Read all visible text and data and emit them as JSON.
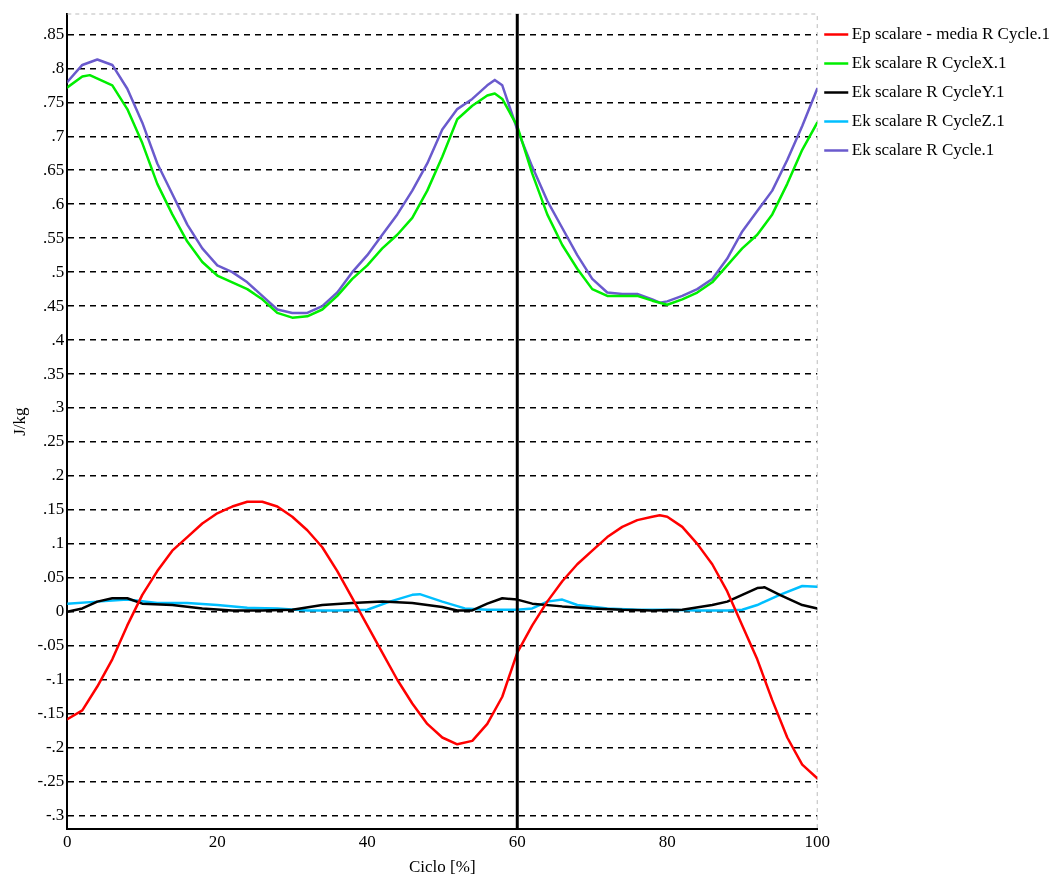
{
  "chart_data": {
    "type": "line",
    "xlabel": "Ciclo [%]",
    "ylabel": "J/kg",
    "xlim": [
      0,
      100
    ],
    "xticks": [
      0,
      20,
      40,
      60,
      80,
      100
    ],
    "ylim": [
      -0.32,
      0.88
    ],
    "yticks": [
      {
        "value": -0.3,
        "label": "-.3"
      },
      {
        "value": -0.25,
        "label": "-.25"
      },
      {
        "value": -0.2,
        "label": "-.2"
      },
      {
        "value": -0.15,
        "label": "-.15"
      },
      {
        "value": -0.1,
        "label": "-.1"
      },
      {
        "value": -0.05,
        "label": "-.05"
      },
      0,
      {
        "value": 0.05,
        "label": ".05"
      },
      {
        "value": 0.1,
        "label": ".1"
      },
      {
        "value": 0.15,
        "label": ".15"
      },
      {
        "value": 0.2,
        "label": ".2"
      },
      {
        "value": 0.25,
        "label": ".25"
      },
      {
        "value": 0.3,
        "label": ".3"
      },
      {
        "value": 0.35,
        "label": ".35"
      },
      {
        "value": 0.4,
        "label": ".4"
      },
      {
        "value": 0.45,
        "label": ".45"
      },
      {
        "value": 0.5,
        "label": ".5"
      },
      {
        "value": 0.55,
        "label": ".55"
      },
      {
        "value": 0.6,
        "label": ".6"
      },
      {
        "value": 0.65,
        "label": ".65"
      },
      {
        "value": 0.7,
        "label": ".7"
      },
      {
        "value": 0.75,
        "label": ".75"
      },
      {
        "value": 0.8,
        "label": ".8"
      },
      {
        "value": 0.85,
        "label": ".85"
      }
    ],
    "grid": "y",
    "legend": "top right",
    "marker": "none",
    "line_style": "solid",
    "ref_lines": [
      {
        "axis": "x",
        "value": 60,
        "color": "#000000",
        "line_style": "solid"
      }
    ],
    "series": [
      {
        "name": "Ep scalare - media R Cycle.1",
        "color": "#ff0000",
        "x": [
          0,
          2,
          4,
          6,
          8,
          10,
          12,
          14,
          16,
          18,
          20,
          22,
          24,
          26,
          28,
          30,
          32,
          34,
          36,
          38,
          40,
          42,
          44,
          46,
          48,
          50,
          52,
          54,
          56,
          58,
          60,
          62,
          64,
          66,
          68,
          70,
          72,
          74,
          76,
          78,
          79,
          80,
          82,
          84,
          86,
          88,
          90,
          92,
          94,
          96,
          98,
          100
        ],
        "values": [
          -0.158,
          -0.145,
          -0.11,
          -0.07,
          -0.02,
          0.025,
          0.06,
          0.09,
          0.11,
          0.13,
          0.145,
          0.155,
          0.162,
          0.162,
          0.155,
          0.14,
          0.12,
          0.095,
          0.06,
          0.02,
          -0.02,
          -0.06,
          -0.1,
          -0.135,
          -0.165,
          -0.185,
          -0.195,
          -0.19,
          -0.165,
          -0.125,
          -0.06,
          -0.02,
          0.015,
          0.045,
          0.07,
          0.09,
          0.11,
          0.125,
          0.135,
          0.14,
          0.142,
          0.14,
          0.125,
          0.1,
          0.07,
          0.03,
          -0.02,
          -0.07,
          -0.13,
          -0.185,
          -0.225,
          -0.245
        ]
      },
      {
        "name": "Ek scalare R CycleX.1",
        "color": "#00ee00",
        "x": [
          0,
          2,
          3,
          6,
          8,
          10,
          12,
          14,
          16,
          18,
          20,
          22,
          24,
          26,
          28,
          30,
          32,
          34,
          36,
          38,
          40,
          42,
          44,
          46,
          48,
          50,
          52,
          54,
          56,
          57,
          58,
          60,
          62,
          64,
          66,
          68,
          70,
          72,
          74,
          76,
          78,
          80,
          82,
          84,
          86,
          88,
          90,
          92,
          94,
          96,
          98,
          100
        ],
        "values": [
          0.772,
          0.788,
          0.79,
          0.775,
          0.74,
          0.69,
          0.63,
          0.585,
          0.545,
          0.515,
          0.495,
          0.485,
          0.475,
          0.46,
          0.44,
          0.433,
          0.435,
          0.445,
          0.465,
          0.49,
          0.51,
          0.535,
          0.555,
          0.58,
          0.62,
          0.67,
          0.725,
          0.745,
          0.76,
          0.763,
          0.755,
          0.715,
          0.645,
          0.585,
          0.54,
          0.505,
          0.475,
          0.465,
          0.465,
          0.465,
          0.458,
          0.452,
          0.46,
          0.47,
          0.485,
          0.51,
          0.535,
          0.555,
          0.585,
          0.63,
          0.68,
          0.72
        ]
      },
      {
        "name": "Ek scalare R CycleY.1",
        "color": "#000000",
        "x": [
          0,
          2,
          4,
          6,
          8,
          10,
          14,
          18,
          22,
          26,
          30,
          34,
          38,
          42,
          46,
          50,
          52,
          54,
          56,
          58,
          60,
          62,
          66,
          70,
          74,
          78,
          82,
          86,
          88,
          90,
          92,
          93,
          95,
          98,
          100
        ],
        "values": [
          0,
          0.005,
          0.015,
          0.02,
          0.02,
          0.012,
          0.01,
          0.005,
          0.002,
          0.002,
          0.003,
          0.01,
          0.013,
          0.015,
          0.013,
          0.007,
          0.002,
          0.002,
          0.012,
          0.02,
          0.018,
          0.012,
          0.008,
          0.005,
          0.003,
          0.002,
          0.003,
          0.01,
          0.015,
          0.025,
          0.035,
          0.036,
          0.025,
          0.01,
          0.005
        ]
      },
      {
        "name": "Ek scalare R CycleZ.1",
        "color": "#00bfff",
        "x": [
          0,
          4,
          8,
          12,
          16,
          20,
          24,
          28,
          32,
          36,
          40,
          43,
          46,
          47,
          50,
          53,
          56,
          60,
          62,
          64,
          66,
          68,
          72,
          76,
          80,
          84,
          88,
          90,
          92,
          95,
          98,
          100
        ],
        "values": [
          0.012,
          0.015,
          0.018,
          0.013,
          0.013,
          0.01,
          0.006,
          0.005,
          0.002,
          0.002,
          0.003,
          0.015,
          0.025,
          0.026,
          0.015,
          0.005,
          0.003,
          0.003,
          0.005,
          0.015,
          0.018,
          0.01,
          0.005,
          0.003,
          0.003,
          0.002,
          0.002,
          0.003,
          0.01,
          0.025,
          0.038,
          0.037
        ]
      },
      {
        "name": "Ek scalare R Cycle.1",
        "color": "#6a5acd",
        "x": [
          0,
          2,
          4,
          6,
          8,
          10,
          12,
          14,
          16,
          18,
          20,
          22,
          24,
          26,
          28,
          30,
          32,
          34,
          36,
          38,
          40,
          42,
          44,
          46,
          48,
          50,
          52,
          54,
          56,
          57,
          58,
          60,
          62,
          64,
          66,
          68,
          70,
          72,
          74,
          76,
          78,
          79,
          80,
          82,
          84,
          86,
          88,
          90,
          92,
          94,
          96,
          98,
          100
        ],
        "values": [
          0.78,
          0.805,
          0.813,
          0.805,
          0.77,
          0.72,
          0.66,
          0.615,
          0.57,
          0.535,
          0.51,
          0.5,
          0.485,
          0.465,
          0.445,
          0.44,
          0.44,
          0.45,
          0.47,
          0.5,
          0.525,
          0.555,
          0.585,
          0.62,
          0.66,
          0.71,
          0.74,
          0.755,
          0.775,
          0.783,
          0.775,
          0.71,
          0.655,
          0.605,
          0.565,
          0.525,
          0.49,
          0.47,
          0.468,
          0.468,
          0.46,
          0.455,
          0.457,
          0.465,
          0.475,
          0.49,
          0.52,
          0.56,
          0.59,
          0.62,
          0.665,
          0.715,
          0.77
        ]
      }
    ]
  }
}
